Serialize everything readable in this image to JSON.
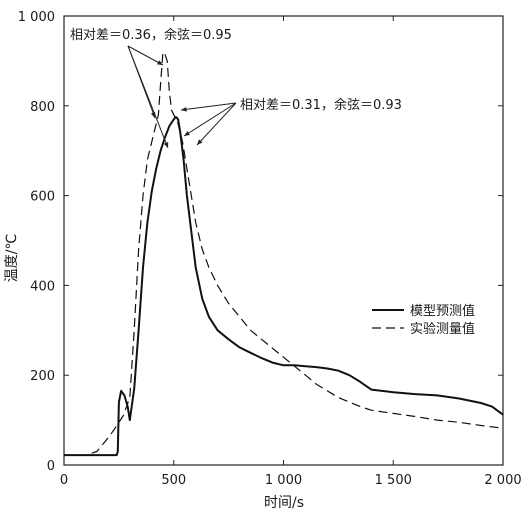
{
  "chart_data": {
    "type": "line",
    "xlabel": "时间/s",
    "ylabel": "温度/℃",
    "xlim": [
      0,
      2000
    ],
    "ylim": [
      0,
      1000
    ],
    "xticks": [
      0,
      500,
      1000,
      1500,
      2000
    ],
    "xtick_labels": [
      "0",
      "500",
      "1 000",
      "1 500",
      "2 000"
    ],
    "yticks": [
      0,
      200,
      400,
      600,
      800,
      1000
    ],
    "ytick_labels": [
      "0",
      "200",
      "400",
      "600",
      "800",
      "1 000"
    ],
    "grid": false,
    "legend_position": "right",
    "series": [
      {
        "name": "模型预测值",
        "style": "solid",
        "x": [
          0,
          240,
          245,
          250,
          260,
          275,
          290,
          300,
          320,
          340,
          360,
          380,
          400,
          420,
          440,
          460,
          480,
          500,
          510,
          520,
          530,
          545,
          560,
          580,
          600,
          630,
          660,
          700,
          750,
          800,
          850,
          900,
          950,
          1000,
          1050,
          1100,
          1150,
          1200,
          1250,
          1300,
          1350,
          1400,
          1450,
          1500,
          1600,
          1700,
          1800,
          1900,
          1950,
          2000
        ],
        "y": [
          22,
          22,
          30,
          140,
          165,
          155,
          130,
          100,
          170,
          300,
          440,
          540,
          610,
          660,
          700,
          730,
          755,
          770,
          775,
          770,
          740,
          680,
          600,
          520,
          440,
          370,
          330,
          300,
          280,
          262,
          250,
          238,
          228,
          222,
          222,
          220,
          218,
          215,
          210,
          200,
          185,
          168,
          165,
          162,
          158,
          155,
          148,
          138,
          130,
          112
        ]
      },
      {
        "name": "实验测量值",
        "style": "dashed",
        "x": [
          0,
          100,
          150,
          200,
          230,
          250,
          270,
          300,
          320,
          340,
          360,
          380,
          400,
          410,
          420,
          430,
          440,
          450,
          455,
          460,
          470,
          480,
          490,
          500,
          510,
          520,
          540,
          560,
          580,
          600,
          630,
          660,
          700,
          750,
          800,
          850,
          900,
          950,
          1000,
          1050,
          1100,
          1150,
          1200,
          1250,
          1300,
          1350,
          1400,
          1500,
          1600,
          1700,
          1800,
          1900,
          2000
        ],
        "y": [
          22,
          22,
          30,
          60,
          80,
          95,
          110,
          150,
          300,
          480,
          600,
          680,
          720,
          740,
          760,
          780,
          850,
          915,
          920,
          915,
          900,
          830,
          790,
          780,
          770,
          760,
          720,
          660,
          600,
          540,
          480,
          440,
          400,
          360,
          330,
          300,
          280,
          260,
          240,
          220,
          200,
          180,
          165,
          150,
          140,
          130,
          122,
          115,
          108,
          100,
          95,
          88,
          82
        ]
      }
    ],
    "annotations": [
      {
        "text": "相对差＝0.36，余弦＝0.95"
      },
      {
        "text": "相对差＝0.31，余弦＝0.93"
      }
    ]
  }
}
